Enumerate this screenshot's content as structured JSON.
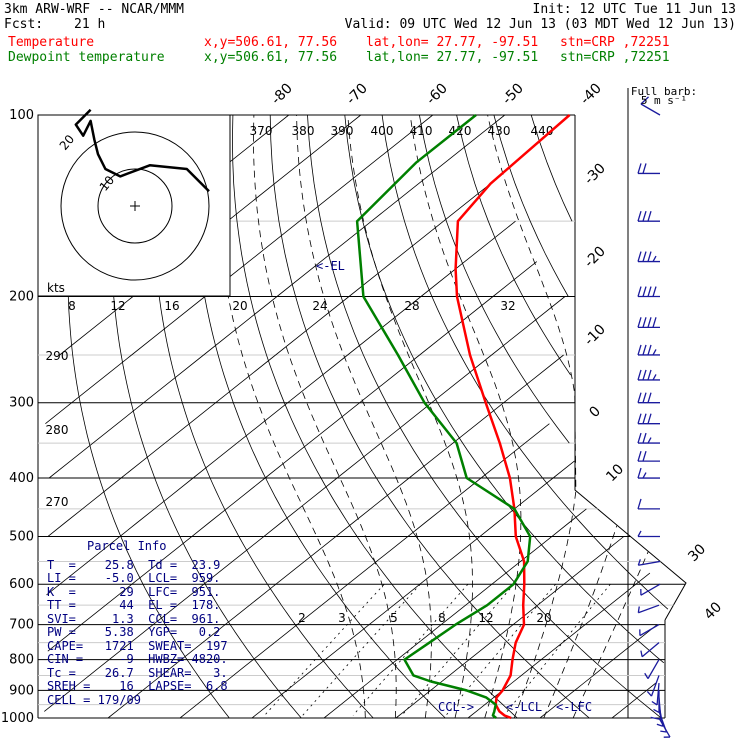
{
  "header": {
    "model": "3km ARW-WRF -- NCAR/MMM",
    "init": "Init: 12 UTC Tue 11 Jun 13",
    "fcst_label": "Fcst:",
    "fcst_value": "21 h",
    "valid": "Valid: 09 UTC Wed 12 Jun 13 (03 MDT Wed 12 Jun 13)",
    "temp_line": {
      "name": "Temperature",
      "xy": "x,y=506.61, 77.56",
      "latlon": "lat,lon= 27.77, -97.51",
      "stn": "stn=CRP ,72251",
      "color": "#ff0000"
    },
    "dew_line": {
      "name": "Dewpoint temperature",
      "xy": "x,y=506.61, 77.56",
      "latlon": "lat,lon= 27.77, -97.51",
      "stn": "stn=CRP ,72251",
      "color": "#008000"
    }
  },
  "wind_legend": {
    "line1": "Full barb:",
    "line2": "5 m s⁻¹"
  },
  "hodograph": {
    "units": "kts",
    "ring_labels": [
      "10",
      "20"
    ]
  },
  "parcel_info": {
    "title": "Parcel Info",
    "lines": [
      "T  =    25.8  Td =  23.9",
      "LI =    -5.0  LCL=  959.",
      "K  =      29  LFC=  951.",
      "TT =      44  EL =  178.",
      "SVI=     1.3  CCL=  961.",
      "PW =    5.38  YGP=   0.2",
      "CAPE=   1721  SWEAT=  197",
      "CIN =     -9  HWBZ= 4820.",
      "Tc =    26.7  SHEAR=   3.",
      "SREH =    16  LAPSE=  6.8",
      "CELL = 179/09"
    ]
  },
  "level_markers": {
    "el": "<-EL",
    "lcl": "<-LCL",
    "lfc": "<-LFC",
    "ccl": "CCL->"
  },
  "chart_data": {
    "type": "line",
    "title": "",
    "y_axis": {
      "quantity": "pressure (hPa)",
      "scale": "log",
      "range": [
        1050,
        100
      ],
      "tick_labels": [
        100,
        200,
        300,
        400,
        500,
        600,
        700,
        800,
        900,
        1000
      ]
    },
    "isotherm_labels": [
      -80,
      -70,
      -60,
      -50,
      -40,
      -30,
      -20,
      -10,
      0,
      10,
      30,
      40
    ],
    "theta_labels_top": [
      370,
      380,
      390,
      400,
      410,
      420,
      430,
      440
    ],
    "theta_labels_left": [
      290,
      280,
      270
    ],
    "mixing_ratio_top": [
      8,
      12,
      16,
      20,
      24,
      28,
      32
    ],
    "mixing_ratio_bottom": [
      2,
      3,
      5,
      8,
      12,
      20
    ],
    "series": [
      {
        "name": "Temperature",
        "color": "#ff0000",
        "points": [
          {
            "p": 1000,
            "t": 26.0
          },
          {
            "p": 990,
            "t": 24.6
          },
          {
            "p": 975,
            "t": 23.2
          },
          {
            "p": 950,
            "t": 21.5
          },
          {
            "p": 925,
            "t": 20.4
          },
          {
            "p": 900,
            "t": 20.0
          },
          {
            "p": 850,
            "t": 18.5
          },
          {
            "p": 800,
            "t": 16.0
          },
          {
            "p": 750,
            "t": 13.5
          },
          {
            "p": 700,
            "t": 11.5
          },
          {
            "p": 650,
            "t": 8.0
          },
          {
            "p": 600,
            "t": 4.5
          },
          {
            "p": 550,
            "t": 0.5
          },
          {
            "p": 500,
            "t": -5.0
          },
          {
            "p": 450,
            "t": -10.0
          },
          {
            "p": 400,
            "t": -16.0
          },
          {
            "p": 350,
            "t": -23.5
          },
          {
            "p": 300,
            "t": -32.5
          },
          {
            "p": 250,
            "t": -43.0
          },
          {
            "p": 200,
            "t": -55.0
          },
          {
            "p": 180,
            "t": -60.0
          },
          {
            "p": 150,
            "t": -68.0
          },
          {
            "p": 130,
            "t": -70.0
          },
          {
            "p": 100,
            "t": -71.0
          }
        ]
      },
      {
        "name": "Dewpoint temperature",
        "color": "#008000",
        "points": [
          {
            "p": 1000,
            "t": 23.9
          },
          {
            "p": 990,
            "t": 23.0
          },
          {
            "p": 975,
            "t": 22.5
          },
          {
            "p": 950,
            "t": 21.5
          },
          {
            "p": 925,
            "t": 19.0
          },
          {
            "p": 900,
            "t": 15.0
          },
          {
            "p": 870,
            "t": 8.5
          },
          {
            "p": 850,
            "t": 5.0
          },
          {
            "p": 800,
            "t": 1.0
          },
          {
            "p": 750,
            "t": 1.5
          },
          {
            "p": 700,
            "t": 2.0
          },
          {
            "p": 650,
            "t": 3.0
          },
          {
            "p": 600,
            "t": 3.0
          },
          {
            "p": 550,
            "t": 1.0
          },
          {
            "p": 500,
            "t": -3.0
          },
          {
            "p": 450,
            "t": -10.0
          },
          {
            "p": 400,
            "t": -22.0
          },
          {
            "p": 350,
            "t": -29.5
          },
          {
            "p": 300,
            "t": -41.0
          },
          {
            "p": 250,
            "t": -53.0
          },
          {
            "p": 200,
            "t": -68.0
          },
          {
            "p": 150,
            "t": -82.0
          },
          {
            "p": 120,
            "t": -84.0
          },
          {
            "p": 100,
            "t": -84.0
          }
        ]
      }
    ],
    "wind_barbs": [
      {
        "p": 1000,
        "dir": 150,
        "spd": 5
      },
      {
        "p": 975,
        "dir": 160,
        "spd": 5
      },
      {
        "p": 950,
        "dir": 170,
        "spd": 8
      },
      {
        "p": 925,
        "dir": 175,
        "spd": 10
      },
      {
        "p": 900,
        "dir": 180,
        "spd": 8
      },
      {
        "p": 875,
        "dir": 185,
        "spd": 5
      },
      {
        "p": 850,
        "dir": 200,
        "spd": 5
      },
      {
        "p": 800,
        "dir": 210,
        "spd": 5
      },
      {
        "p": 750,
        "dir": 230,
        "spd": 5
      },
      {
        "p": 700,
        "dir": 240,
        "spd": 5
      },
      {
        "p": 650,
        "dir": 250,
        "spd": 5
      },
      {
        "p": 600,
        "dir": 240,
        "spd": 5
      },
      {
        "p": 550,
        "dir": 260,
        "spd": 5
      },
      {
        "p": 500,
        "dir": 270,
        "spd": 5
      },
      {
        "p": 450,
        "dir": 270,
        "spd": 10
      },
      {
        "p": 400,
        "dir": 270,
        "spd": 15
      },
      {
        "p": 375,
        "dir": 270,
        "spd": 20
      },
      {
        "p": 350,
        "dir": 270,
        "spd": 25
      },
      {
        "p": 325,
        "dir": 270,
        "spd": 30
      },
      {
        "p": 300,
        "dir": 270,
        "spd": 30
      },
      {
        "p": 275,
        "dir": 270,
        "spd": 35
      },
      {
        "p": 250,
        "dir": 270,
        "spd": 35
      },
      {
        "p": 225,
        "dir": 270,
        "spd": 40
      },
      {
        "p": 200,
        "dir": 270,
        "spd": 40
      },
      {
        "p": 175,
        "dir": 270,
        "spd": 35
      },
      {
        "p": 150,
        "dir": 270,
        "spd": 30
      },
      {
        "p": 125,
        "dir": 270,
        "spd": 20
      },
      {
        "p": 100,
        "dir": 300,
        "spd": 10
      }
    ],
    "hodograph_points": [
      [
        20,
        4
      ],
      [
        14,
        10
      ],
      [
        4,
        11
      ],
      [
        -4,
        8
      ],
      [
        -8,
        10
      ],
      [
        -10,
        14
      ],
      [
        -11,
        18
      ],
      [
        -12,
        23
      ],
      [
        -14,
        19
      ],
      [
        -16,
        22
      ],
      [
        -12,
        26
      ]
    ]
  }
}
